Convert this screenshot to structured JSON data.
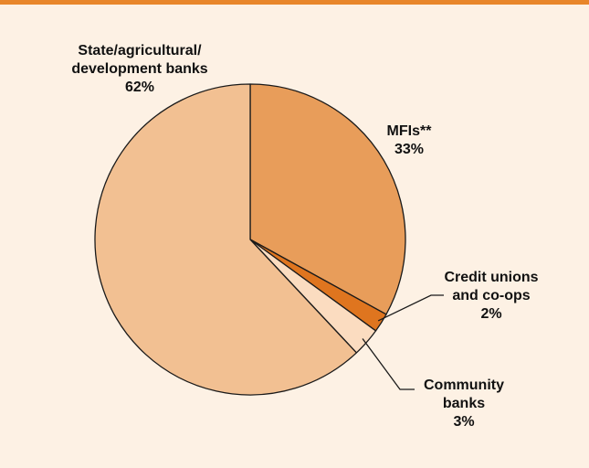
{
  "colors": {
    "frame_accent": "#e8862a",
    "background": "#fdf1e4",
    "outline": "#1a1a1a"
  },
  "chart_data": {
    "type": "pie",
    "title": "",
    "slices": [
      {
        "label_lines": [
          "MFIs**"
        ],
        "value": 33,
        "value_label": "33%",
        "color": "#e89d5a"
      },
      {
        "label_lines": [
          "Credit unions",
          "and co-ops"
        ],
        "value": 2,
        "value_label": "2%",
        "color": "#df751f"
      },
      {
        "label_lines": [
          "Community",
          "banks"
        ],
        "value": 3,
        "value_label": "3%",
        "color": "#fbdcc0"
      },
      {
        "label_lines": [
          "State/agricultural/",
          "development banks"
        ],
        "value": 62,
        "value_label": "62%",
        "color": "#f2c092"
      }
    ]
  }
}
